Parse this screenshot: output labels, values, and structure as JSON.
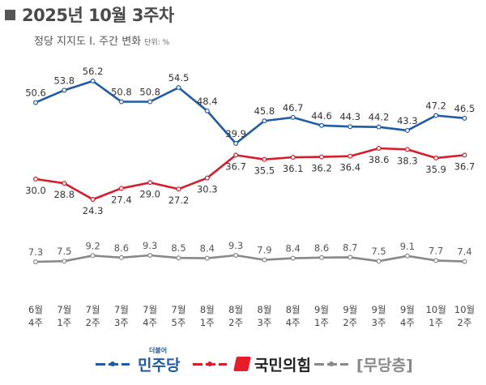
{
  "header": {
    "title": "2025년 10월 3주차",
    "subtitle": "정당 지지도 Ⅰ. 주간 변화",
    "unit": "단위: %"
  },
  "colors": {
    "democratic": "#1f5aa6",
    "ppp": "#d41e2b",
    "independent": "#888888"
  },
  "chart_data": {
    "type": "line",
    "categories": [
      "6월 4주",
      "7월 1주",
      "7월 2주",
      "7월 3주",
      "7월 4주",
      "7월 5주",
      "8월 1주",
      "8월 2주",
      "8월 3주",
      "8월 4주",
      "9월 1주",
      "9월 2주",
      "9월 3주",
      "9월 4주",
      "10월 1주",
      "10월 2주"
    ],
    "series": [
      {
        "name": "민주당",
        "color": "#1f5aa6",
        "values": [
          50.6,
          53.8,
          56.2,
          50.8,
          50.8,
          54.5,
          48.4,
          39.9,
          45.8,
          46.7,
          44.6,
          44.3,
          44.2,
          43.3,
          47.2,
          46.5
        ]
      },
      {
        "name": "국민의힘",
        "color": "#d41e2b",
        "values": [
          30.0,
          28.8,
          24.3,
          27.4,
          29.0,
          27.2,
          30.3,
          36.7,
          35.5,
          36.1,
          36.2,
          36.4,
          38.6,
          38.3,
          35.9,
          36.7
        ]
      },
      {
        "name": "[무당층]",
        "color": "#888888",
        "values": [
          7.3,
          7.5,
          9.2,
          8.6,
          9.3,
          8.5,
          8.4,
          9.3,
          7.9,
          8.4,
          8.6,
          8.7,
          7.5,
          9.1,
          7.7,
          7.4
        ]
      }
    ],
    "xlabel": "",
    "ylabel": "",
    "grid": false,
    "legend": "bottom"
  },
  "legend": {
    "democratic_label": "민주당",
    "democratic_small": "더불어",
    "ppp_label": "국민의힘",
    "independent_label": "[무당층]"
  }
}
